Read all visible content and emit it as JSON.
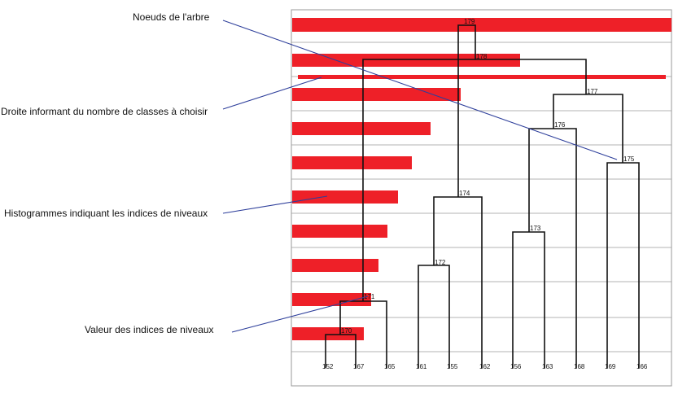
{
  "annotations": {
    "nodes": "Noeuds de l'arbre",
    "cut_line": "Droite informant du nombre de classes à choisir",
    "histograms": "Histogrammes indiquant les indices de niveaux",
    "values": "Valeur des indices de niveaux"
  },
  "leaves": [
    "152",
    "167",
    "165",
    "161",
    "155",
    "162",
    "156",
    "163",
    "168",
    "169",
    "166"
  ],
  "nodes": [
    "170",
    "171",
    "172",
    "173",
    "174",
    "175",
    "176",
    "177",
    "178",
    "179"
  ],
  "colors": {
    "histogram": "#ee2028",
    "annotation_line": "#2e3f9b",
    "tree": "#111111",
    "grid": "#9a9a9a"
  }
}
